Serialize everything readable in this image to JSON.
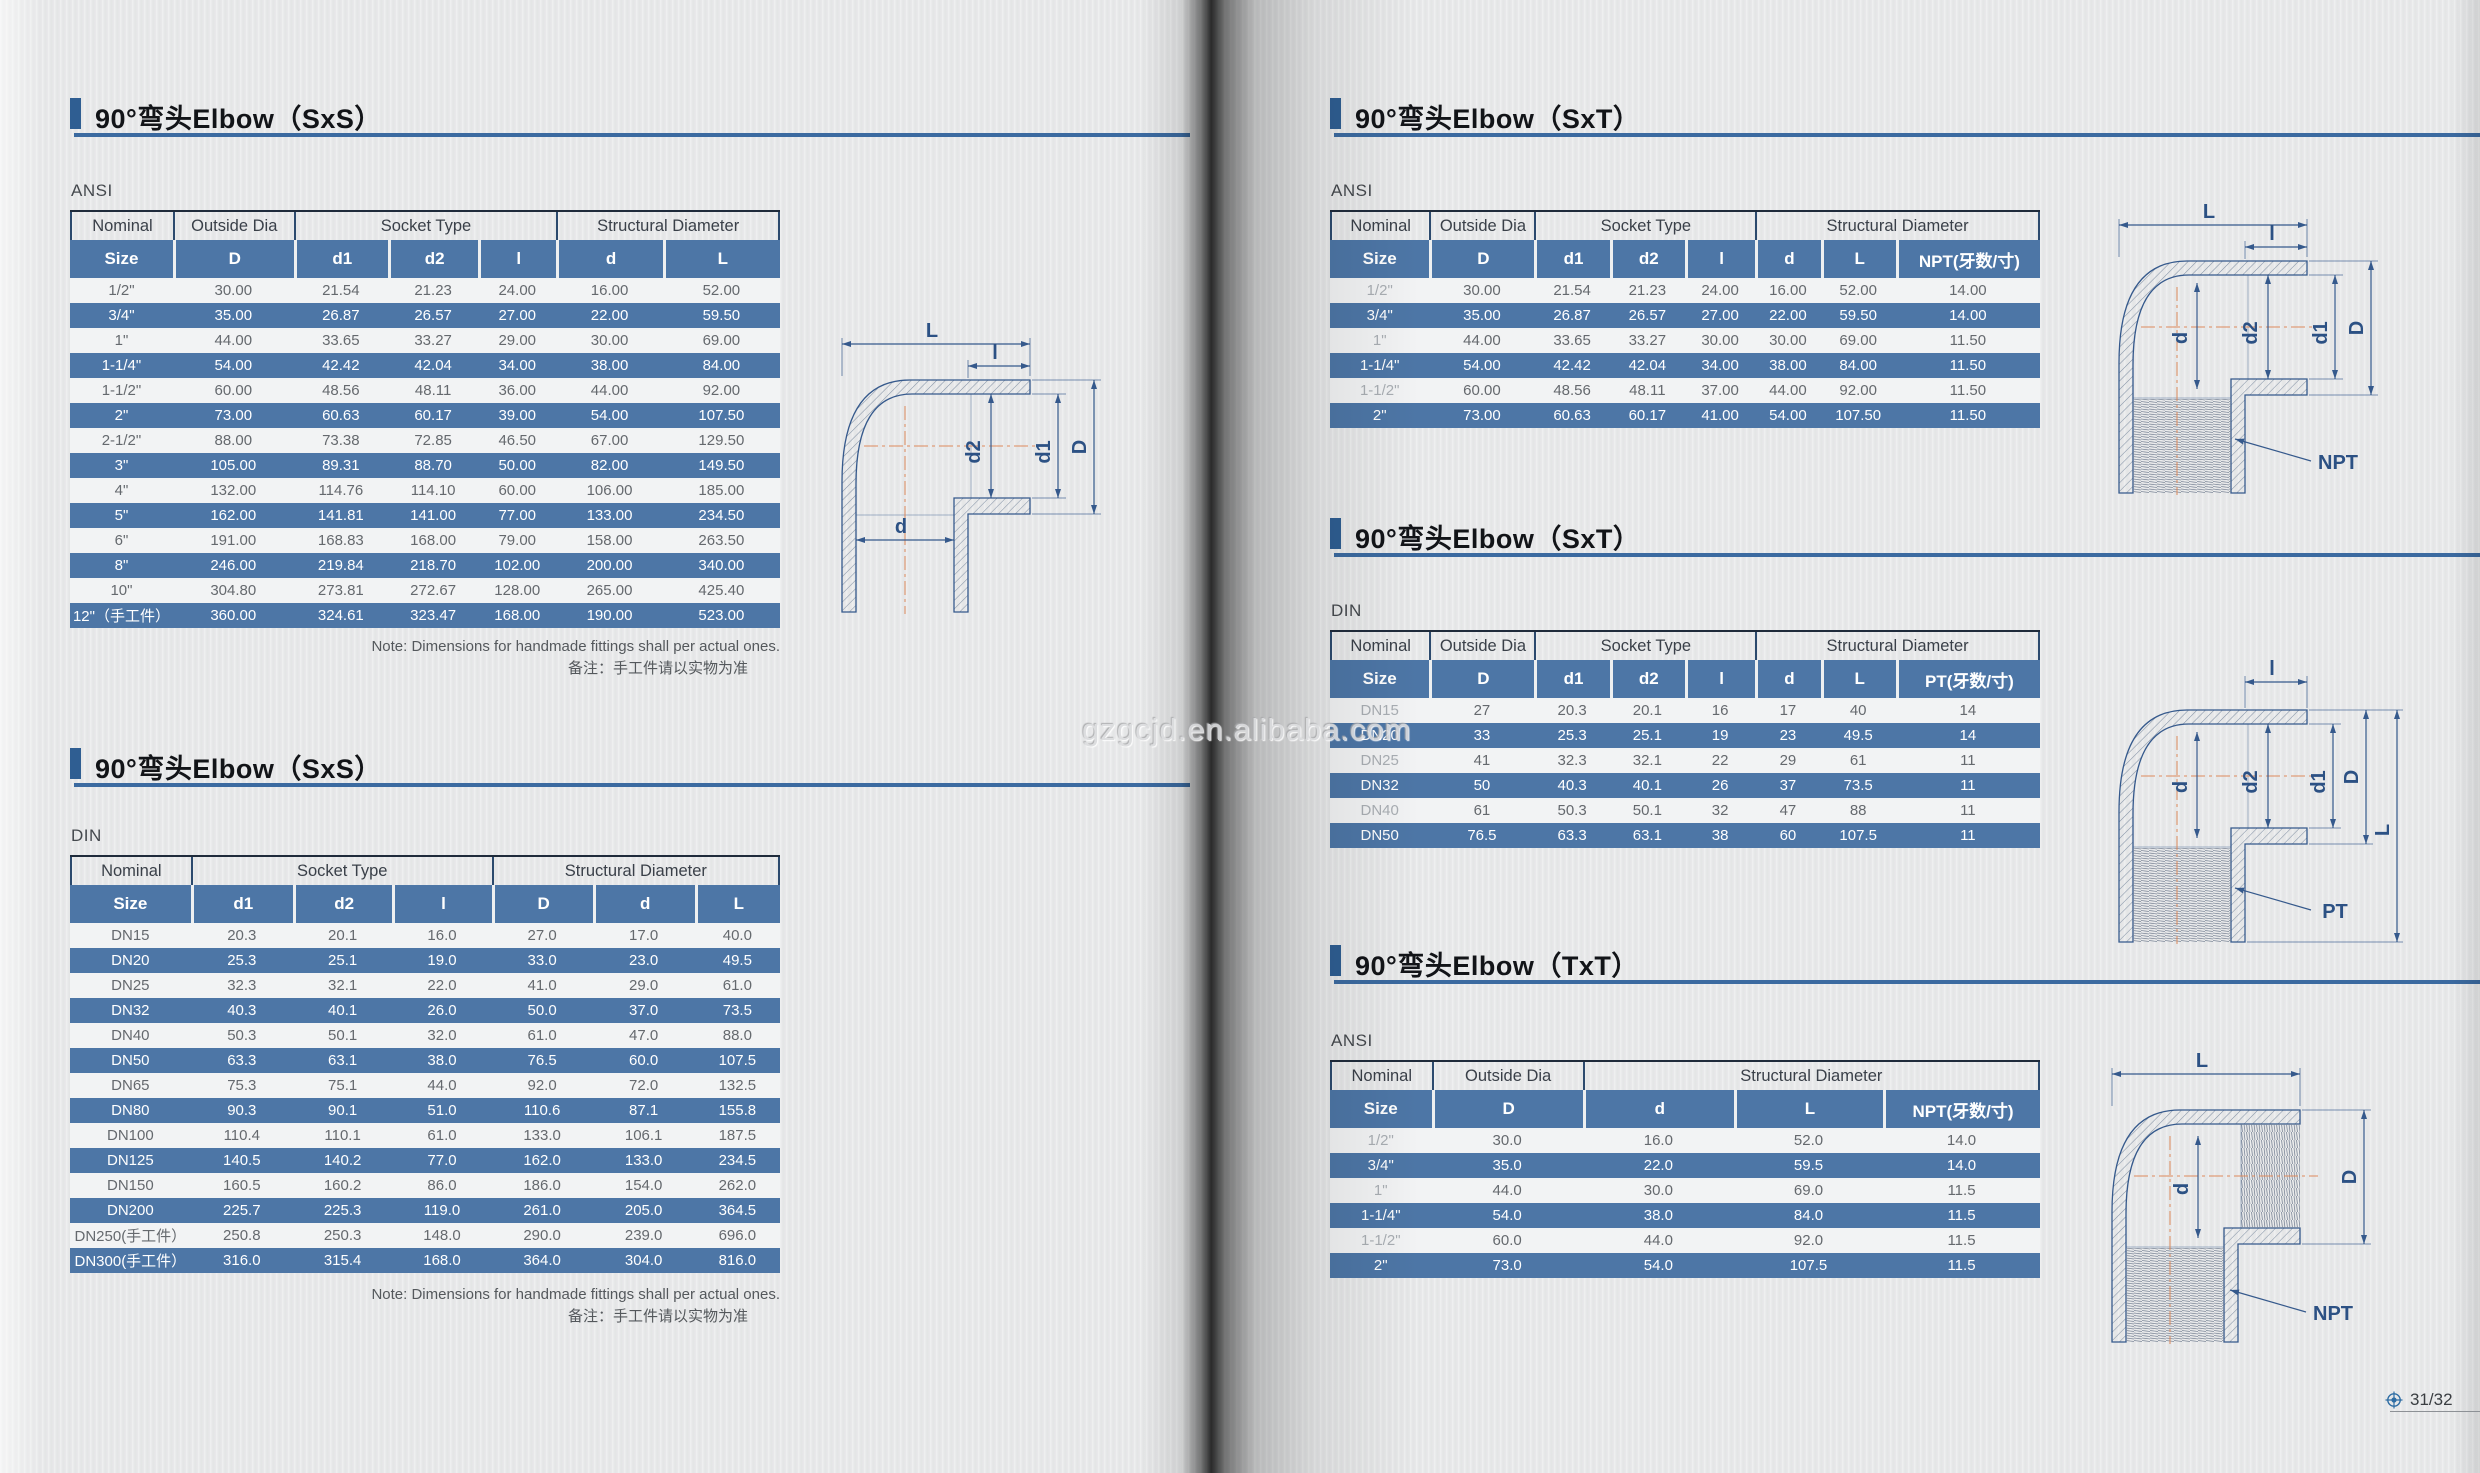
{
  "sections": [
    {
      "title": "90°弯头Elbow（SxS）"
    },
    {
      "title": "90°弯头Elbow（SxS）"
    },
    {
      "title": "90°弯头Elbow（SxT）"
    },
    {
      "title": "90°弯头Elbow（SxT）"
    },
    {
      "title": "90°弯头Elbow（TxT）"
    }
  ],
  "tables": [
    {
      "standard": "ANSI",
      "groups": [
        {
          "label": "Nominal",
          "span": 1
        },
        {
          "label": "Outside Dia",
          "span": 1
        },
        {
          "label": "Socket Type",
          "span": 3
        },
        {
          "label": "Structural Diameter",
          "span": 2
        }
      ],
      "cols": [
        "Size",
        "D",
        "d1",
        "d2",
        "l",
        "d",
        "L"
      ],
      "rows": [
        [
          "1/2\"",
          "30.00",
          "21.54",
          "21.23",
          "24.00",
          "16.00",
          "52.00"
        ],
        [
          "3/4\"",
          "35.00",
          "26.87",
          "26.57",
          "27.00",
          "22.00",
          "59.50"
        ],
        [
          "1\"",
          "44.00",
          "33.65",
          "33.27",
          "29.00",
          "30.00",
          "69.00"
        ],
        [
          "1-1/4\"",
          "54.00",
          "42.42",
          "42.04",
          "34.00",
          "38.00",
          "84.00"
        ],
        [
          "1-1/2\"",
          "60.00",
          "48.56",
          "48.11",
          "36.00",
          "44.00",
          "92.00"
        ],
        [
          "2\"",
          "73.00",
          "60.63",
          "60.17",
          "39.00",
          "54.00",
          "107.50"
        ],
        [
          "2-1/2\"",
          "88.00",
          "73.38",
          "72.85",
          "46.50",
          "67.00",
          "129.50"
        ],
        [
          "3\"",
          "105.00",
          "89.31",
          "88.70",
          "50.00",
          "82.00",
          "149.50"
        ],
        [
          "4\"",
          "132.00",
          "114.76",
          "114.10",
          "60.00",
          "106.00",
          "185.00"
        ],
        [
          "5\"",
          "162.00",
          "141.81",
          "141.00",
          "77.00",
          "133.00",
          "234.50"
        ],
        [
          "6\"",
          "191.00",
          "168.83",
          "168.00",
          "79.00",
          "158.00",
          "263.50"
        ],
        [
          "8\"",
          "246.00",
          "219.84",
          "218.70",
          "102.00",
          "200.00",
          "340.00"
        ],
        [
          "10\"",
          "304.80",
          "273.81",
          "272.67",
          "128.00",
          "265.00",
          "425.40"
        ],
        [
          "12\"（手工件）",
          "360.00",
          "324.61",
          "323.47",
          "168.00",
          "190.00",
          "523.00"
        ]
      ]
    },
    {
      "standard": "DIN",
      "groups": [
        {
          "label": "Nominal",
          "span": 1
        },
        {
          "label": "Socket Type",
          "span": 3
        },
        {
          "label": "Structural Diameter",
          "span": 3
        }
      ],
      "cols": [
        "Size",
        "d1",
        "d2",
        "l",
        "D",
        "d",
        "L"
      ],
      "rows": [
        [
          "DN15",
          "20.3",
          "20.1",
          "16.0",
          "27.0",
          "17.0",
          "40.0"
        ],
        [
          "DN20",
          "25.3",
          "25.1",
          "19.0",
          "33.0",
          "23.0",
          "49.5"
        ],
        [
          "DN25",
          "32.3",
          "32.1",
          "22.0",
          "41.0",
          "29.0",
          "61.0"
        ],
        [
          "DN32",
          "40.3",
          "40.1",
          "26.0",
          "50.0",
          "37.0",
          "73.5"
        ],
        [
          "DN40",
          "50.3",
          "50.1",
          "32.0",
          "61.0",
          "47.0",
          "88.0"
        ],
        [
          "DN50",
          "63.3",
          "63.1",
          "38.0",
          "76.5",
          "60.0",
          "107.5"
        ],
        [
          "DN65",
          "75.3",
          "75.1",
          "44.0",
          "92.0",
          "72.0",
          "132.5"
        ],
        [
          "DN80",
          "90.3",
          "90.1",
          "51.0",
          "110.6",
          "87.1",
          "155.8"
        ],
        [
          "DN100",
          "110.4",
          "110.1",
          "61.0",
          "133.0",
          "106.1",
          "187.5"
        ],
        [
          "DN125",
          "140.5",
          "140.2",
          "77.0",
          "162.0",
          "133.0",
          "234.5"
        ],
        [
          "DN150",
          "160.5",
          "160.2",
          "86.0",
          "186.0",
          "154.0",
          "262.0"
        ],
        [
          "DN200",
          "225.7",
          "225.3",
          "119.0",
          "261.0",
          "205.0",
          "364.5"
        ],
        [
          "DN250(手工件）",
          "250.8",
          "250.3",
          "148.0",
          "290.0",
          "239.0",
          "696.0"
        ],
        [
          "DN300(手工件）",
          "316.0",
          "315.4",
          "168.0",
          "364.0",
          "304.0",
          "816.0"
        ]
      ]
    },
    {
      "standard": "ANSI",
      "groups": [
        {
          "label": "Nominal",
          "span": 1
        },
        {
          "label": "Outside Dia",
          "span": 1
        },
        {
          "label": "Socket Type",
          "span": 3
        },
        {
          "label": "Structural Diameter",
          "span": 3
        }
      ],
      "cols": [
        "Size",
        "D",
        "d1",
        "d2",
        "l",
        "d",
        "L",
        "NPT(牙数/寸)"
      ],
      "rows": [
        [
          "1/2\"",
          "30.00",
          "21.54",
          "21.23",
          "24.00",
          "16.00",
          "52.00",
          "14.00"
        ],
        [
          "3/4\"",
          "35.00",
          "26.87",
          "26.57",
          "27.00",
          "22.00",
          "59.50",
          "14.00"
        ],
        [
          "1\"",
          "44.00",
          "33.65",
          "33.27",
          "30.00",
          "30.00",
          "69.00",
          "11.50"
        ],
        [
          "1-1/4\"",
          "54.00",
          "42.42",
          "42.04",
          "34.00",
          "38.00",
          "84.00",
          "11.50"
        ],
        [
          "1-1/2\"",
          "60.00",
          "48.56",
          "48.11",
          "37.00",
          "44.00",
          "92.00",
          "11.50"
        ],
        [
          "2\"",
          "73.00",
          "60.63",
          "60.17",
          "41.00",
          "54.00",
          "107.50",
          "11.50"
        ]
      ]
    },
    {
      "standard": "DIN",
      "groups": [
        {
          "label": "Nominal",
          "span": 1
        },
        {
          "label": "Outside Dia",
          "span": 1
        },
        {
          "label": "Socket Type",
          "span": 3
        },
        {
          "label": "Structural Diameter",
          "span": 3
        }
      ],
      "cols": [
        "Size",
        "D",
        "d1",
        "d2",
        "l",
        "d",
        "L",
        "PT(牙数/寸)"
      ],
      "rows": [
        [
          "DN15",
          "27",
          "20.3",
          "20.1",
          "16",
          "17",
          "40",
          "14"
        ],
        [
          "DN20",
          "33",
          "25.3",
          "25.1",
          "19",
          "23",
          "49.5",
          "14"
        ],
        [
          "DN25",
          "41",
          "32.3",
          "32.1",
          "22",
          "29",
          "61",
          "11"
        ],
        [
          "DN32",
          "50",
          "40.3",
          "40.1",
          "26",
          "37",
          "73.5",
          "11"
        ],
        [
          "DN40",
          "61",
          "50.3",
          "50.1",
          "32",
          "47",
          "88",
          "11"
        ],
        [
          "DN50",
          "76.5",
          "63.3",
          "63.1",
          "38",
          "60",
          "107.5",
          "11"
        ]
      ]
    },
    {
      "standard": "ANSI",
      "groups": [
        {
          "label": "Nominal",
          "span": 1
        },
        {
          "label": "Outside Dia",
          "span": 1
        },
        {
          "label": "Structural Diameter",
          "span": 3
        }
      ],
      "cols": [
        "Size",
        "D",
        "d",
        "L",
        "NPT(牙数/寸)"
      ],
      "rows": [
        [
          "1/2\"",
          "30.0",
          "16.0",
          "52.0",
          "14.0"
        ],
        [
          "3/4\"",
          "35.0",
          "22.0",
          "59.5",
          "14.0"
        ],
        [
          "1\"",
          "44.0",
          "30.0",
          "69.0",
          "11.5"
        ],
        [
          "1-1/4\"",
          "54.0",
          "38.0",
          "84.0",
          "11.5"
        ],
        [
          "1-1/2\"",
          "60.0",
          "44.0",
          "92.0",
          "11.5"
        ],
        [
          "2\"",
          "73.0",
          "54.0",
          "107.5",
          "11.5"
        ]
      ]
    }
  ],
  "notes": {
    "en": "Note: Dimensions for handmade fittings shall per actual ones.",
    "zh": "备注：手工件请以实物为准"
  },
  "watermark": "gzgcjd.en.alibaba.com",
  "page_indicator": "31/32",
  "diagrams": {
    "sxs": {
      "L": "L",
      "l": "l",
      "d2": "d2",
      "d1": "d1",
      "D": "D",
      "d": "d"
    },
    "sxt_ansi": {
      "L": "L",
      "l": "l",
      "d": "d",
      "d2": "d2",
      "d1": "d1",
      "D": "D",
      "thread": "NPT"
    },
    "sxt_din": {
      "l": "l",
      "d": "d",
      "d2": "d2",
      "d1": "d1",
      "D": "D",
      "L": "L",
      "thread": "PT"
    },
    "txt": {
      "L": "L",
      "d": "d",
      "D": "D",
      "thread": "NPT"
    }
  },
  "colors": {
    "header_blue": "#4d76a6",
    "accent_bar": "#2f5e92",
    "underline": "#3b6aa0",
    "line_blue": "#35598c",
    "centerline_orange": "#dd8a5c"
  }
}
